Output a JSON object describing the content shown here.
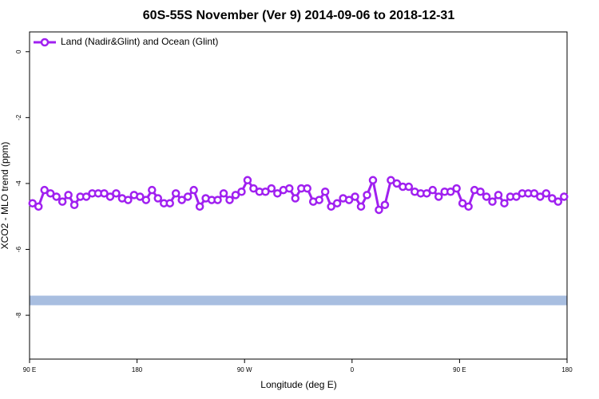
{
  "chart_data": {
    "type": "line",
    "title": "60S-55S November (Ver 9)   2014-09-06 to 2018-12-31",
    "xlabel": "Longitude (deg E)",
    "ylabel": "XCO2 - MLO trend (ppm)",
    "xlim": [
      90,
      540
    ],
    "ylim": [
      -9.33,
      0.6
    ],
    "xticks": [
      {
        "value": 90,
        "label": "90 E"
      },
      180,
      {
        "value": 270,
        "label": "90 W"
      },
      {
        "value": 360,
        "label": "0"
      },
      {
        "value": 450,
        "label": "90 E"
      },
      {
        "value": 540,
        "label": "180"
      }
    ],
    "yticks": [
      0,
      -2,
      -4,
      -6,
      -8
    ],
    "legend": "top-left",
    "reference_band": {
      "value": -7.55,
      "color": "#a8bee0"
    },
    "x": [
      92.5,
      97.5,
      102.5,
      107.5,
      112.5,
      117.5,
      122.5,
      127.5,
      132.5,
      137.5,
      142.5,
      147.5,
      152.5,
      157.5,
      162.5,
      167.5,
      172.5,
      177.5,
      182.5,
      187.5,
      192.5,
      197.5,
      202.5,
      207.5,
      212.5,
      217.5,
      222.5,
      227.5,
      232.5,
      237.5,
      242.5,
      247.5,
      252.5,
      257.5,
      262.5,
      267.5,
      272.5,
      277.5,
      282.5,
      287.5,
      292.5,
      297.5,
      302.5,
      307.5,
      312.5,
      317.5,
      322.5,
      327.5,
      332.5,
      337.5,
      342.5,
      347.5,
      352.5,
      357.5,
      362.5,
      367.5,
      372.5,
      377.5,
      382.5,
      387.5,
      392.5,
      397.5,
      402.5,
      407.5,
      412.5,
      417.5,
      422.5,
      427.5,
      432.5,
      437.5,
      442.5,
      447.5,
      452.5,
      457.5,
      462.5,
      467.5,
      472.5,
      477.5,
      482.5,
      487.5,
      492.5,
      497.5,
      502.5,
      507.5,
      512.5,
      517.5,
      522.5,
      527.5,
      532.5,
      537.5
    ],
    "series": [
      {
        "name": "Land (Nadir&Glint) and Ocean (Glint)",
        "color": "#a020f0",
        "values": [
          -4.6,
          -4.7,
          -4.2,
          -4.3,
          -4.4,
          -4.55,
          -4.35,
          -4.65,
          -4.4,
          -4.4,
          -4.3,
          -4.3,
          -4.3,
          -4.4,
          -4.3,
          -4.45,
          -4.5,
          -4.35,
          -4.4,
          -4.5,
          -4.2,
          -4.45,
          -4.6,
          -4.6,
          -4.3,
          -4.5,
          -4.4,
          -4.2,
          -4.7,
          -4.45,
          -4.5,
          -4.5,
          -4.3,
          -4.5,
          -4.35,
          -4.25,
          -3.9,
          -4.15,
          -4.25,
          -4.25,
          -4.15,
          -4.3,
          -4.2,
          -4.15,
          -4.45,
          -4.15,
          -4.15,
          -4.55,
          -4.5,
          -4.25,
          -4.7,
          -4.6,
          -4.45,
          -4.5,
          -4.4,
          -4.7,
          -4.35,
          -3.9,
          -4.8,
          -4.65,
          -3.9,
          -4.0,
          -4.1,
          -4.1,
          -4.25,
          -4.3,
          -4.3,
          -4.2,
          -4.4,
          -4.25,
          -4.25,
          -4.15,
          -4.6,
          -4.7,
          -4.2,
          -4.25,
          -4.4,
          -4.55,
          -4.35,
          -4.6,
          -4.4,
          -4.4,
          -4.3,
          -4.3,
          -4.3,
          -4.4,
          -4.3,
          -4.45,
          -4.55,
          -4.4
        ]
      }
    ]
  }
}
